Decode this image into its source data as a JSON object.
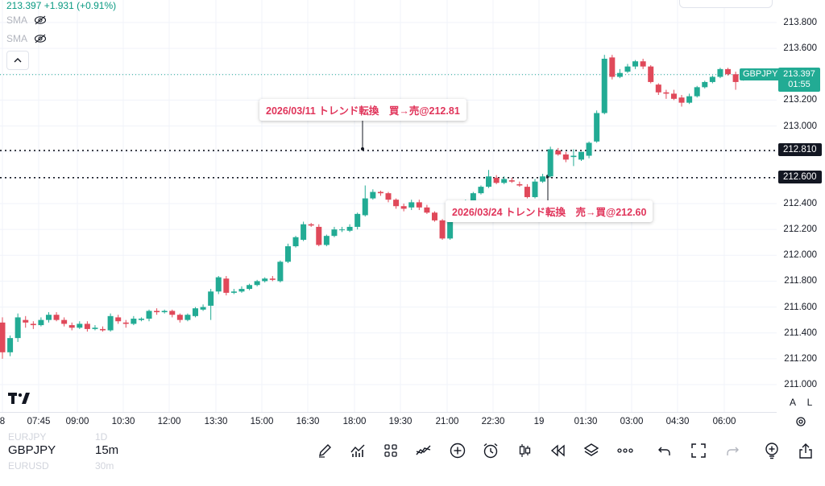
{
  "header": {
    "price": "213.397",
    "change": "+1.931 (+0.91%)",
    "indicators": [
      {
        "label": "SMA",
        "icon": "eye-off-icon"
      },
      {
        "label": "SMA",
        "icon": "eye-off-icon"
      }
    ]
  },
  "price_axis": {
    "ticks": [
      "213.800",
      "213.600",
      "213.400",
      "213.200",
      "213.000",
      "212.800",
      "212.600",
      "212.400",
      "212.200",
      "212.000",
      "211.800",
      "211.600",
      "211.400",
      "211.200",
      "211.000"
    ],
    "levels": [
      "212.810",
      "212.600"
    ],
    "current_price": "213.397",
    "countdown": "01:55",
    "symbol_tag": "GBPJPY"
  },
  "time_axis": [
    "8",
    "07:45",
    "09:00",
    "10:30",
    "12:00",
    "13:30",
    "15:00",
    "16:30",
    "18:00",
    "19:30",
    "21:00",
    "22:30",
    "19",
    "01:30",
    "03:00",
    "04:30",
    "06:00"
  ],
  "annotations": [
    {
      "text": "2026/03/11 トレンド転換　買→売@212.81"
    },
    {
      "text": "2026/03/24 トレンド転換　売→買@212.60"
    }
  ],
  "axis_buttons": {
    "auto": "A",
    "log": "L"
  },
  "bottom": {
    "symbol": "GBPJPY",
    "timeframe": "15m",
    "prev_symbol": "EURJPY",
    "prev_timeframe": "1D",
    "next_symbol": "EURUSD",
    "next_timeframe": "30m",
    "tools": [
      "pen-icon",
      "indicators-icon",
      "templates-icon",
      "compare-icon",
      "add-icon",
      "alert-icon",
      "bar-style-icon",
      "replay-icon",
      "layers-icon",
      "more-icon",
      "undo-icon",
      "fullscreen-icon",
      "redo-icon",
      "add-idea-icon",
      "share-icon"
    ]
  },
  "colors": {
    "up": "#22ab94",
    "down": "#e0495a",
    "accent": "#e0345a"
  },
  "chart_data": {
    "type": "candlestick",
    "y_range": [
      211.0,
      213.85
    ],
    "candles": [
      [
        211.48,
        211.25,
        211.52,
        211.2
      ],
      [
        211.25,
        211.36,
        211.38,
        211.22
      ],
      [
        211.36,
        211.52,
        211.55,
        211.33
      ],
      [
        211.5,
        211.48,
        211.53,
        211.44
      ],
      [
        211.47,
        211.46,
        211.49,
        211.43
      ],
      [
        211.46,
        211.5,
        211.52,
        211.45
      ],
      [
        211.5,
        211.54,
        211.56,
        211.48
      ],
      [
        211.54,
        211.5,
        211.56,
        211.49
      ],
      [
        211.5,
        211.47,
        211.52,
        211.45
      ],
      [
        211.46,
        211.44,
        211.48,
        211.42
      ],
      [
        211.44,
        211.47,
        211.49,
        211.43
      ],
      [
        211.47,
        211.43,
        211.49,
        211.41
      ],
      [
        211.43,
        211.44,
        211.46,
        211.42
      ],
      [
        211.43,
        211.42,
        211.45,
        211.41
      ],
      [
        211.42,
        211.53,
        211.55,
        211.41
      ],
      [
        211.52,
        211.49,
        211.54,
        211.47
      ],
      [
        211.48,
        211.47,
        211.5,
        211.44
      ],
      [
        211.47,
        211.51,
        211.53,
        211.46
      ],
      [
        211.5,
        211.51,
        211.52,
        211.49
      ],
      [
        211.51,
        211.57,
        211.58,
        211.49
      ],
      [
        211.57,
        211.56,
        211.59,
        211.54
      ],
      [
        211.56,
        211.57,
        211.58,
        211.55
      ],
      [
        211.57,
        211.54,
        211.58,
        211.52
      ],
      [
        211.54,
        211.5,
        211.55,
        211.48
      ],
      [
        211.5,
        211.54,
        211.55,
        211.49
      ],
      [
        211.53,
        211.59,
        211.6,
        211.52
      ],
      [
        211.58,
        211.6,
        211.62,
        211.57
      ],
      [
        211.61,
        211.72,
        211.74,
        211.5
      ],
      [
        211.72,
        211.83,
        211.84,
        211.7
      ],
      [
        211.82,
        211.71,
        211.84,
        211.69
      ],
      [
        211.71,
        211.72,
        211.74,
        211.7
      ],
      [
        211.72,
        211.74,
        211.76,
        211.71
      ],
      [
        211.74,
        211.77,
        211.78,
        211.73
      ],
      [
        211.77,
        211.8,
        211.81,
        211.76
      ],
      [
        211.8,
        211.82,
        211.83,
        211.79
      ],
      [
        211.82,
        211.81,
        211.84,
        211.8
      ],
      [
        211.8,
        211.95,
        211.96,
        211.79
      ],
      [
        211.95,
        212.07,
        212.09,
        211.94
      ],
      [
        212.07,
        212.14,
        212.15,
        212.06
      ],
      [
        212.12,
        212.24,
        212.26,
        212.11
      ],
      [
        212.24,
        212.23,
        212.25,
        212.22
      ],
      [
        212.22,
        212.08,
        212.24,
        212.07
      ],
      [
        212.08,
        212.15,
        212.16,
        212.07
      ],
      [
        212.15,
        212.2,
        212.22,
        212.14
      ],
      [
        212.2,
        212.2,
        212.22,
        212.18
      ],
      [
        212.19,
        212.22,
        212.24,
        212.18
      ],
      [
        212.22,
        212.32,
        212.33,
        212.2
      ],
      [
        212.31,
        212.44,
        212.54,
        212.3
      ],
      [
        212.44,
        212.49,
        212.51,
        212.43
      ],
      [
        212.49,
        212.48,
        212.5,
        212.46
      ],
      [
        212.48,
        212.43,
        212.49,
        212.41
      ],
      [
        212.43,
        212.38,
        212.44,
        212.36
      ],
      [
        212.38,
        212.36,
        212.4,
        212.34
      ],
      [
        212.37,
        212.41,
        212.43,
        212.35
      ],
      [
        212.41,
        212.37,
        212.43,
        212.35
      ],
      [
        212.37,
        212.33,
        212.39,
        212.32
      ],
      [
        212.33,
        212.27,
        212.34,
        212.26
      ],
      [
        212.27,
        212.13,
        212.28,
        212.12
      ],
      [
        212.13,
        212.28,
        212.29,
        212.12
      ],
      [
        212.29,
        212.33,
        212.34,
        212.27
      ],
      [
        212.33,
        212.42,
        212.43,
        212.32
      ],
      [
        212.42,
        212.48,
        212.49,
        212.41
      ],
      [
        212.48,
        212.53,
        212.54,
        212.47
      ],
      [
        212.53,
        212.61,
        212.66,
        212.52
      ],
      [
        212.6,
        212.56,
        212.62,
        212.55
      ],
      [
        212.56,
        212.59,
        212.61,
        212.55
      ],
      [
        212.58,
        212.57,
        212.6,
        212.56
      ],
      [
        212.55,
        212.54,
        212.57,
        212.53
      ],
      [
        212.53,
        212.45,
        212.55,
        212.44
      ],
      [
        212.45,
        212.57,
        212.59,
        212.44
      ],
      [
        212.57,
        212.61,
        212.63,
        212.56
      ],
      [
        212.61,
        212.82,
        212.84,
        212.6
      ],
      [
        212.81,
        212.78,
        212.83,
        212.77
      ],
      [
        212.78,
        212.74,
        212.8,
        212.72
      ],
      [
        212.76,
        212.77,
        212.82,
        212.69
      ],
      [
        212.74,
        212.8,
        212.8,
        212.73
      ],
      [
        212.77,
        212.87,
        212.88,
        212.75
      ],
      [
        212.88,
        213.1,
        213.12,
        212.87
      ],
      [
        213.1,
        213.52,
        213.55,
        213.09
      ],
      [
        213.53,
        213.38,
        213.55,
        213.36
      ],
      [
        213.38,
        213.41,
        213.44,
        213.37
      ],
      [
        213.42,
        213.46,
        213.48,
        213.41
      ],
      [
        213.46,
        213.5,
        213.51,
        213.44
      ],
      [
        213.5,
        213.46,
        213.52,
        213.44
      ],
      [
        213.46,
        213.34,
        213.47,
        213.33
      ],
      [
        213.32,
        213.26,
        213.33,
        213.24
      ],
      [
        213.26,
        213.25,
        213.28,
        213.21
      ],
      [
        213.25,
        213.21,
        213.28,
        213.2
      ],
      [
        213.22,
        213.18,
        213.24,
        213.15
      ],
      [
        213.18,
        213.23,
        213.25,
        213.17
      ],
      [
        213.23,
        213.3,
        213.31,
        213.22
      ],
      [
        213.3,
        213.34,
        213.35,
        213.29
      ],
      [
        213.34,
        213.38,
        213.39,
        213.33
      ],
      [
        213.38,
        213.44,
        213.45,
        213.37
      ],
      [
        213.44,
        213.4,
        213.45,
        213.39
      ],
      [
        213.4,
        213.34,
        213.42,
        213.28
      ],
      [
        213.36,
        213.4,
        213.41,
        213.35
      ]
    ]
  }
}
